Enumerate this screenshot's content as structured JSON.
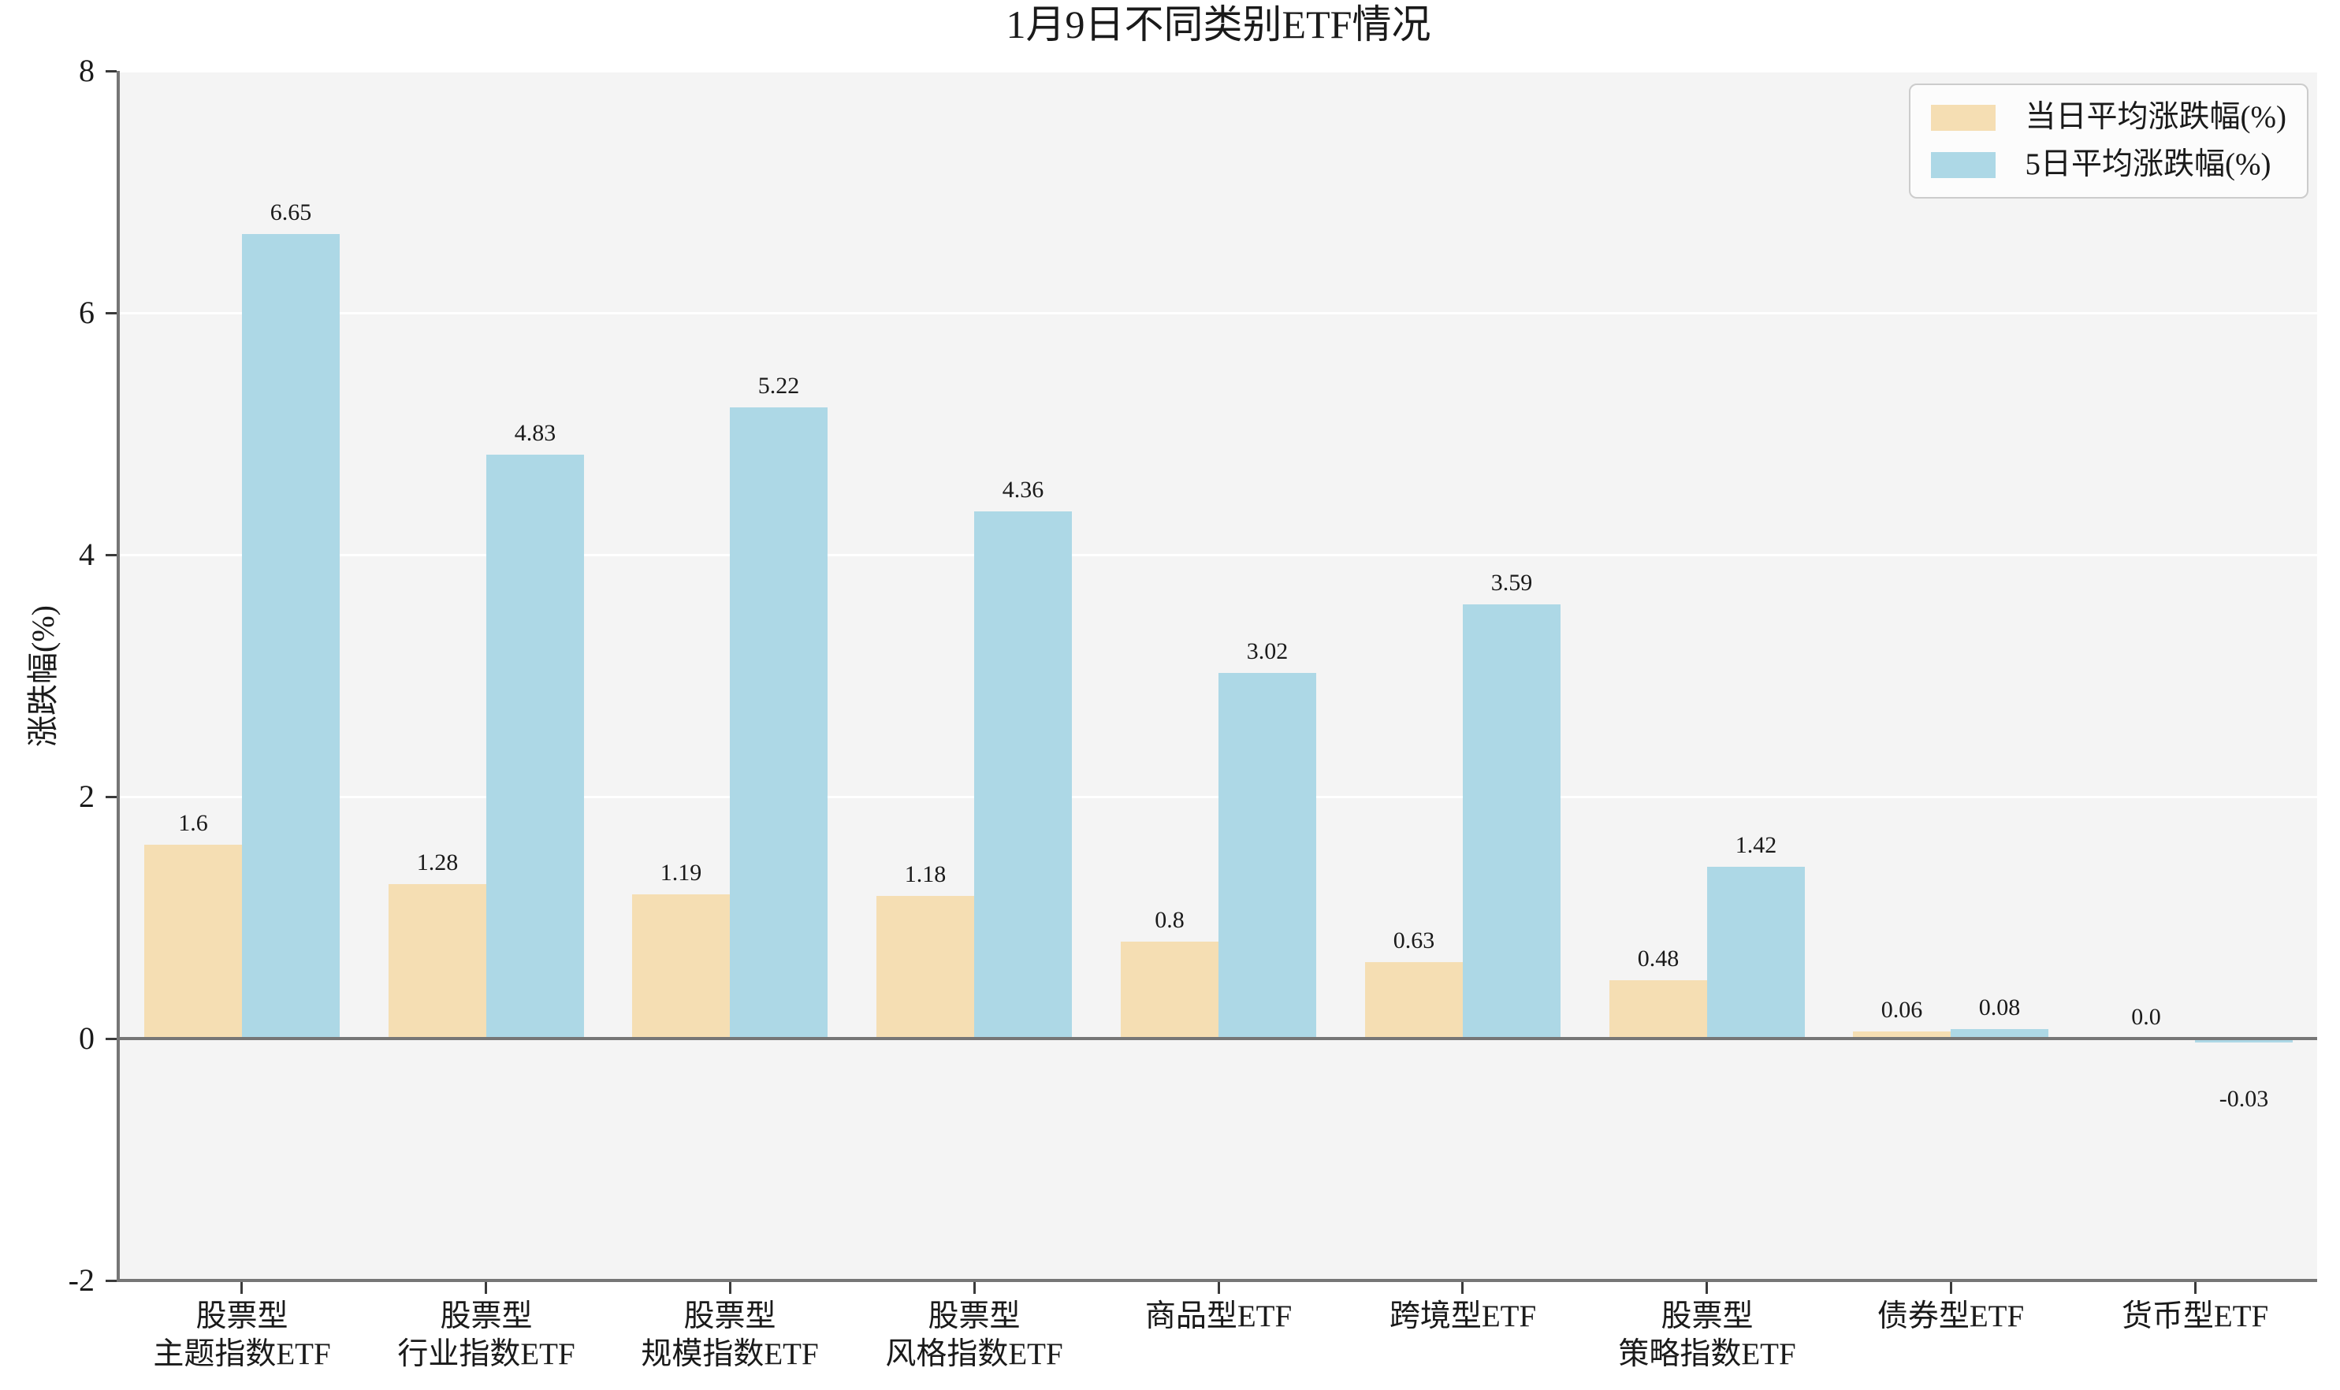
{
  "title": "1月9日不同类别ETF情况",
  "colors": {
    "plot_bg": "#f4f4f4",
    "grid": "#ffffff",
    "spine": "#767676",
    "zero_line": "#767676",
    "tick": "#3a3a3a",
    "text": "#1a1a1a",
    "legend_bg": "#fcfcfc",
    "legend_border": "#cccccc",
    "daily_bar": "#f5deb3",
    "five_day_bar": "#add8e6"
  },
  "chart_data": {
    "type": "bar",
    "title": "1月9日不同类别ETF情况",
    "xlabel": "",
    "ylabel": "涨跌幅(%)",
    "ylim": [
      -2,
      8
    ],
    "yticks": [
      "-2",
      "0",
      "2",
      "4",
      "6",
      "8"
    ],
    "grid": true,
    "legend_position": "upper right",
    "categories": [
      {
        "label": "股票型 主题指数ETF",
        "lines": [
          "股票型",
          "主题指数ETF"
        ]
      },
      {
        "label": "股票型 行业指数ETF",
        "lines": [
          "股票型",
          "行业指数ETF"
        ]
      },
      {
        "label": "股票型 规模指数ETF",
        "lines": [
          "股票型",
          "规模指数ETF"
        ]
      },
      {
        "label": "股票型 风格指数ETF",
        "lines": [
          "股票型",
          "风格指数ETF"
        ]
      },
      {
        "label": "商品型ETF",
        "lines": [
          "商品型ETF"
        ]
      },
      {
        "label": "跨境型ETF",
        "lines": [
          "跨境型ETF"
        ]
      },
      {
        "label": "股票型 策略指数ETF",
        "lines": [
          "股票型",
          "策略指数ETF"
        ]
      },
      {
        "label": "债券型ETF",
        "lines": [
          "债券型ETF"
        ]
      },
      {
        "label": "货币型ETF",
        "lines": [
          "货币型ETF"
        ]
      }
    ],
    "series": [
      {
        "key": "daily-avg",
        "name": "当日平均涨跌幅(%)",
        "color": "#f5deb3",
        "values": [
          1.6,
          1.28,
          1.19,
          1.18,
          0.8,
          0.63,
          0.48,
          0.06,
          0.0
        ],
        "labels": [
          "1.6",
          "1.28",
          "1.19",
          "1.18",
          "0.8",
          "0.63",
          "0.48",
          "0.06",
          "0.0"
        ]
      },
      {
        "key": "5day-avg",
        "name": "5日平均涨跌幅(%)",
        "color": "#add8e6",
        "values": [
          6.65,
          4.83,
          5.22,
          4.36,
          3.02,
          3.59,
          1.42,
          0.08,
          -0.03
        ],
        "labels": [
          "6.65",
          "4.83",
          "5.22",
          "4.36",
          "3.02",
          "3.59",
          "1.42",
          "0.08",
          "-0.03"
        ]
      }
    ]
  }
}
